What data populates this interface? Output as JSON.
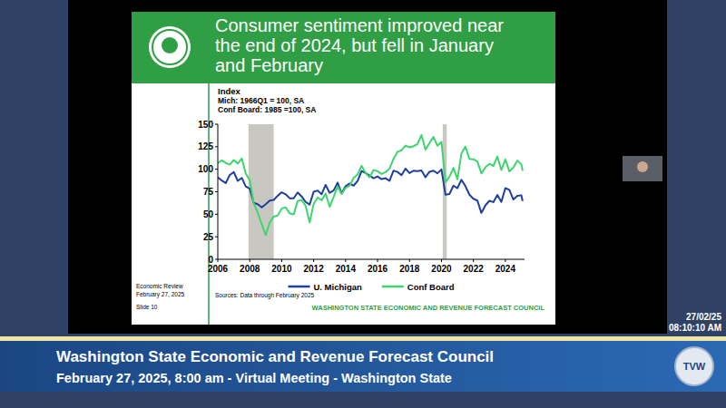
{
  "chart_data": {
    "type": "line",
    "title": "Consumer sentiment improved near the end of 2024, but fell in January and February",
    "ylabel": "Index",
    "annotations": [
      "Mich: 1966Q1 = 100, SA",
      "Conf Board: 1985 =100, SA"
    ],
    "source": "Sources: Data through February 2025",
    "x": [
      2006,
      2006.25,
      2006.5,
      2006.75,
      2007,
      2007.25,
      2007.5,
      2007.75,
      2008,
      2008.25,
      2008.5,
      2008.75,
      2009,
      2009.25,
      2009.5,
      2009.75,
      2010,
      2010.25,
      2010.5,
      2010.75,
      2011,
      2011.25,
      2011.5,
      2011.75,
      2012,
      2012.25,
      2012.5,
      2012.75,
      2013,
      2013.25,
      2013.5,
      2013.75,
      2014,
      2014.25,
      2014.5,
      2014.75,
      2015,
      2015.25,
      2015.5,
      2015.75,
      2016,
      2016.25,
      2016.5,
      2016.75,
      2017,
      2017.25,
      2017.5,
      2017.75,
      2018,
      2018.25,
      2018.5,
      2018.75,
      2019,
      2019.25,
      2019.5,
      2019.75,
      2020,
      2020.25,
      2020.5,
      2020.75,
      2021,
      2021.25,
      2021.5,
      2021.75,
      2022,
      2022.25,
      2022.5,
      2022.75,
      2023,
      2023.25,
      2023.5,
      2023.75,
      2024,
      2024.25,
      2024.5,
      2024.75,
      2025,
      2025.08
    ],
    "series": [
      {
        "name": "U. Michigan",
        "color": "#1f3f9e",
        "line_style": "solid",
        "values": [
          91.2,
          87.4,
          84.7,
          93.6,
          96.9,
          87.1,
          90.4,
          80.9,
          78.4,
          62.6,
          61.2,
          57.6,
          61.2,
          65.1,
          66,
          70.6,
          74.4,
          72.2,
          67.8,
          67.7,
          74.2,
          69.8,
          63.7,
          60.8,
          75,
          76.4,
          72.3,
          82.6,
          73.8,
          76.4,
          85.1,
          73.2,
          81.2,
          84.1,
          81.8,
          86.9,
          98.1,
          95.9,
          93.1,
          90,
          92,
          89,
          90,
          87.2,
          98.5,
          97,
          93.4,
          100.7,
          95.7,
          98.4,
          97.9,
          98.6,
          91.2,
          97.2,
          98.4,
          95.5,
          99.8,
          71.8,
          72.5,
          81.8,
          79,
          88.3,
          81.2,
          71.7,
          67.2,
          65.2,
          51.5,
          59.9,
          64.9,
          63.5,
          71.5,
          63.8,
          79,
          77.2,
          66.4,
          70.5,
          71.1,
          64.7
        ]
      },
      {
        "name": "Conf Board",
        "color": "#3ed46e",
        "line_style": "solid",
        "values": [
          106.8,
          109.8,
          107,
          105.1,
          110.2,
          106.3,
          111.9,
          95.2,
          87.9,
          62.3,
          51.9,
          38.8,
          27,
          40.8,
          47.4,
          48.7,
          56.5,
          57.7,
          51,
          49.9,
          64.8,
          66,
          59.2,
          40.9,
          61.5,
          68.7,
          65.4,
          73.1,
          58.4,
          69,
          81,
          72.4,
          79.4,
          81.7,
          90.3,
          94.1,
          103.8,
          95.8,
          91,
          99.1,
          97.8,
          94.7,
          96.7,
          100.8,
          111.6,
          119.4,
          121.1,
          126.2,
          124.3,
          125.6,
          127.9,
          137.9,
          121.7,
          129.2,
          135.8,
          126.1,
          130.4,
          85.7,
          91.7,
          101.4,
          88.9,
          117.5,
          125.1,
          111.6,
          111.1,
          108.6,
          95.3,
          102.2,
          106,
          103.7,
          114,
          99.1,
          110.9,
          97.5,
          101.9,
          109.6,
          105.3,
          98.3
        ]
      }
    ],
    "shaded_periods": [
      {
        "start": 2007.92,
        "end": 2009.5
      },
      {
        "start": 2020.08,
        "end": 2020.33
      }
    ],
    "xlim": [
      2006,
      2025.2
    ],
    "xticks": [
      2006,
      2008,
      2010,
      2012,
      2014,
      2016,
      2018,
      2020,
      2022,
      2024
    ],
    "ylim": [
      0,
      150
    ],
    "yticks": [
      0,
      25,
      50,
      75,
      100,
      125,
      150
    ],
    "grid": false,
    "legend": "bottom"
  },
  "slide": {
    "footer_left": [
      "Economic Review",
      "February 27, 2025",
      "Slide 10"
    ],
    "footer_right": "WASHINGTON STATE ECONOMIC AND REVENUE FORECAST COUNCIL"
  },
  "timestamp": [
    "27/02/25",
    "08:10:10 AM"
  ],
  "banner": {
    "line1": "Washington State Economic and Revenue Forecast Council",
    "line2": "February 27, 2025, 8:00 am - Virtual Meeting - Washington State",
    "logo": "TVW"
  }
}
